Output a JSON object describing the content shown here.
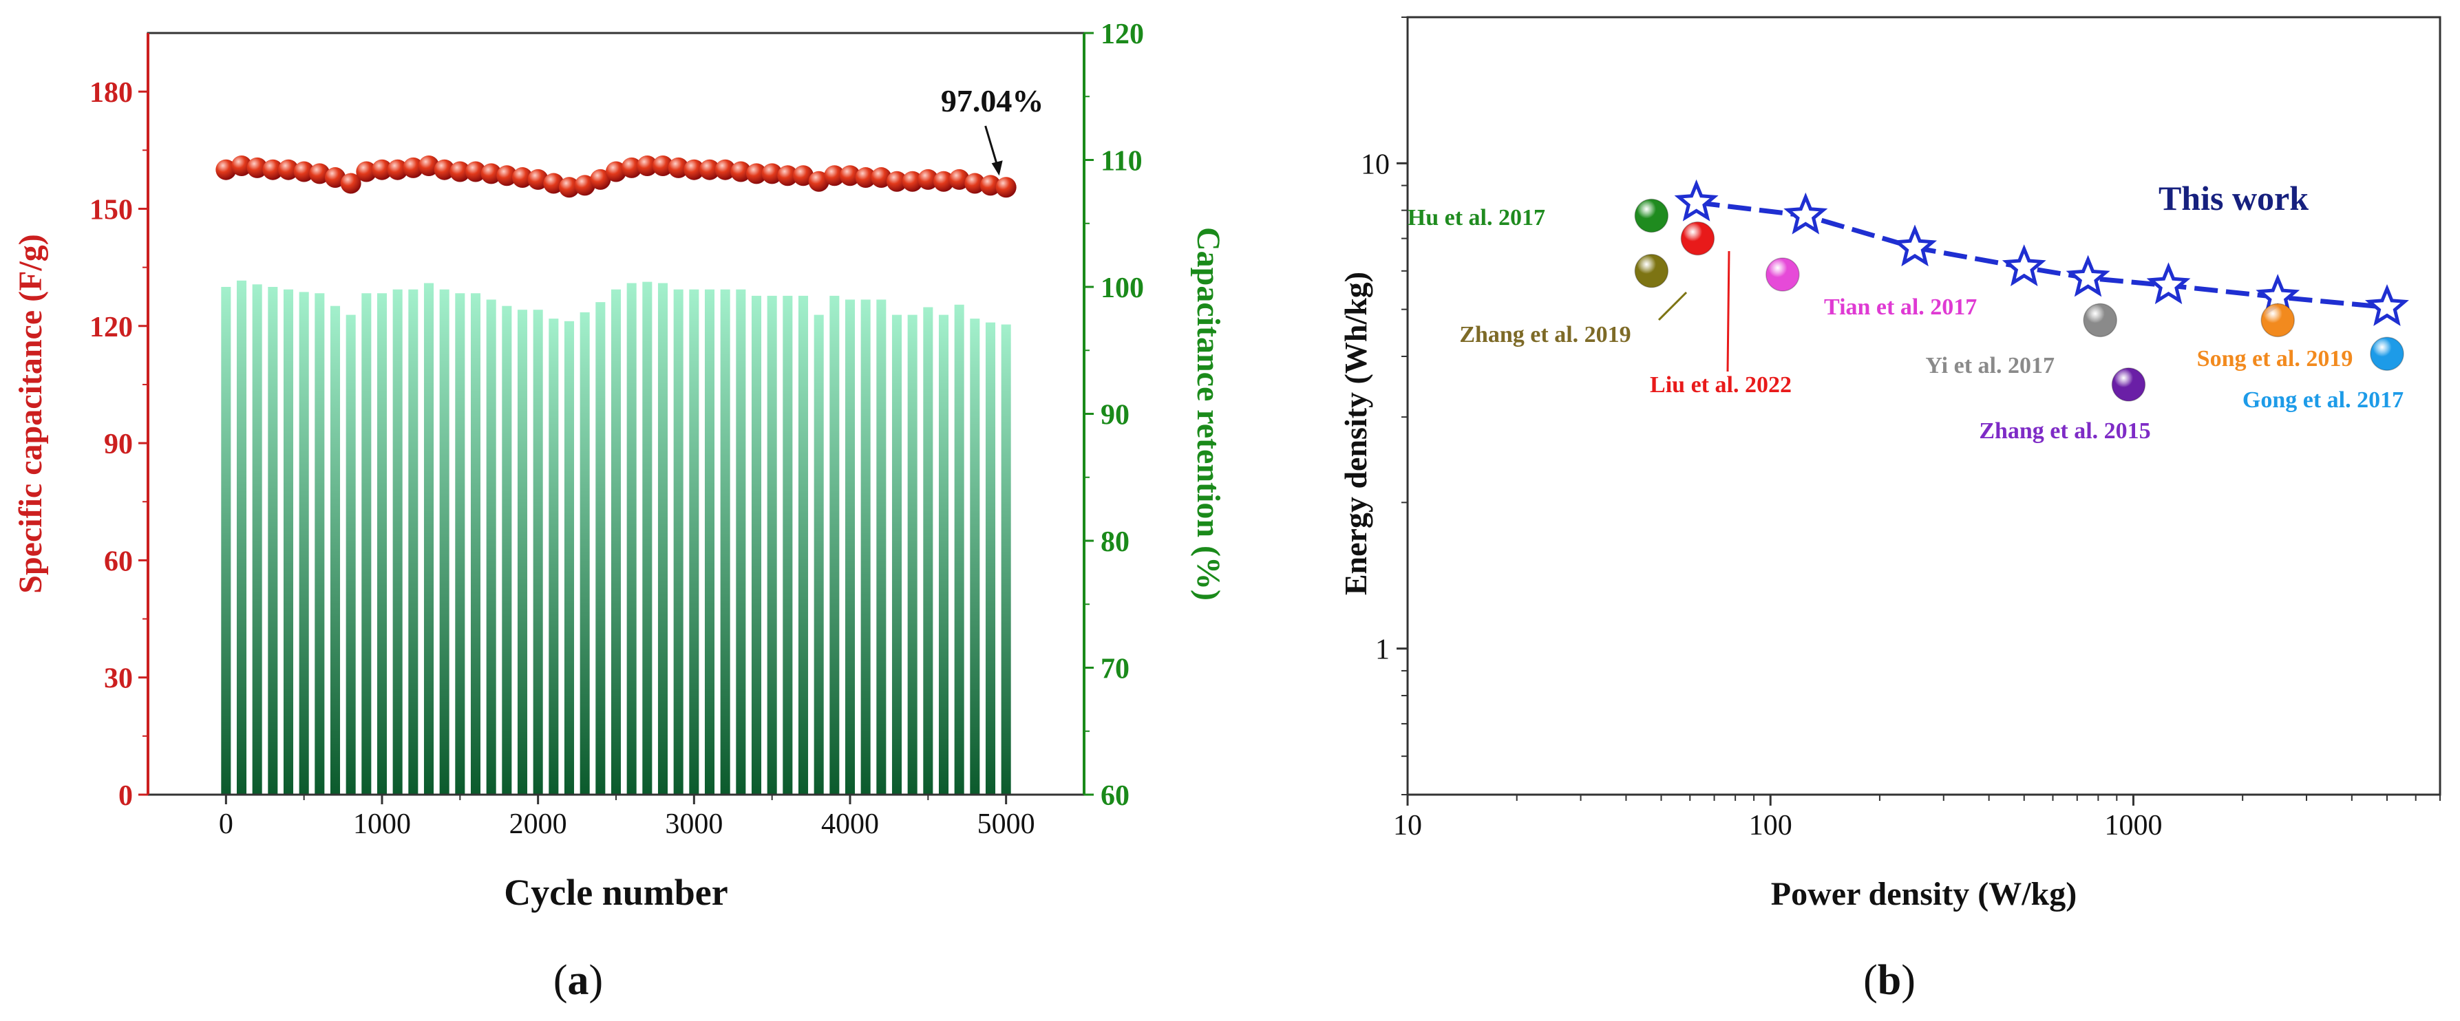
{
  "chart_data": [
    {
      "id": "a",
      "type": "bar+scatter",
      "title": "",
      "panel_label": {
        "prefix": "(",
        "letter": "a",
        "suffix": ")"
      },
      "xlabel": "Cycle number",
      "ylabel_left": "Specific capacitance (F/g)",
      "ylabel_right": "Capacitance retention (%)",
      "xlim": [
        -500,
        5500
      ],
      "ylim_left": [
        0,
        195
      ],
      "ylim_right": [
        60,
        120
      ],
      "xticks": [
        0,
        1000,
        2000,
        3000,
        4000,
        5000
      ],
      "yticks_left": [
        0,
        30,
        60,
        90,
        120,
        150,
        180
      ],
      "yticks_right": [
        60,
        70,
        80,
        90,
        100,
        110,
        120
      ],
      "colors": {
        "capacitance": "#cc1f1f",
        "retention": "#1a8a1a",
        "bar_top": "#a3f0cc",
        "bar_bottom": "#0b5a2c"
      },
      "series": [
        {
          "name": "Specific capacitance",
          "axis": "left",
          "kind": "scatter",
          "x": [
            0,
            100,
            200,
            300,
            400,
            500,
            600,
            700,
            800,
            900,
            1000,
            1100,
            1200,
            1300,
            1400,
            1500,
            1600,
            1700,
            1800,
            1900,
            2000,
            2100,
            2200,
            2300,
            2400,
            2500,
            2600,
            2700,
            2800,
            2900,
            3000,
            3100,
            3200,
            3300,
            3400,
            3500,
            3600,
            3700,
            3800,
            3900,
            4000,
            4100,
            4200,
            4300,
            4400,
            4500,
            4600,
            4700,
            4800,
            4900,
            5000
          ],
          "values": [
            160,
            161,
            160.5,
            160,
            160,
            159.5,
            159,
            158,
            156.5,
            159.5,
            160,
            160,
            160.5,
            161,
            160,
            159.5,
            159.5,
            159,
            158.5,
            158,
            157.5,
            156.5,
            155.5,
            156,
            157.5,
            159.5,
            160.5,
            161,
            161,
            160.5,
            160,
            160,
            160,
            159.5,
            159,
            159,
            158.5,
            158.5,
            157,
            158.5,
            158.5,
            158,
            158,
            157,
            157,
            157.5,
            157,
            157.5,
            156.5,
            156,
            155.5
          ]
        },
        {
          "name": "Capacitance retention",
          "axis": "right",
          "kind": "bar",
          "x": [
            0,
            100,
            200,
            300,
            400,
            500,
            600,
            700,
            800,
            900,
            1000,
            1100,
            1200,
            1300,
            1400,
            1500,
            1600,
            1700,
            1800,
            1900,
            2000,
            2100,
            2200,
            2300,
            2400,
            2500,
            2600,
            2700,
            2800,
            2900,
            3000,
            3100,
            3200,
            3300,
            3400,
            3500,
            3600,
            3700,
            3800,
            3900,
            4000,
            4100,
            4200,
            4300,
            4400,
            4500,
            4600,
            4700,
            4800,
            4900,
            5000
          ],
          "values": [
            100,
            100.5,
            100.2,
            100,
            99.8,
            99.6,
            99.5,
            98.5,
            97.8,
            99.5,
            99.5,
            99.8,
            99.8,
            100.3,
            99.8,
            99.5,
            99.5,
            99,
            98.5,
            98.2,
            98.2,
            97.5,
            97.3,
            98,
            98.8,
            99.8,
            100.3,
            100.4,
            100.3,
            99.8,
            99.8,
            99.8,
            99.8,
            99.8,
            99.3,
            99.3,
            99.3,
            99.3,
            97.8,
            99.3,
            99,
            99,
            99,
            97.8,
            97.8,
            98.4,
            97.8,
            98.6,
            97.5,
            97.2,
            97.04
          ]
        }
      ],
      "annotations": [
        {
          "text": "97.04%",
          "x": 5000,
          "y": 155.5
        }
      ]
    },
    {
      "id": "b",
      "type": "scatter",
      "title": "",
      "panel_label": {
        "prefix": "(",
        "letter": "b",
        "suffix": ")"
      },
      "xlabel": "Power density (W/kg)",
      "ylabel": "Energy density (Wh/kg)",
      "xscale": "log",
      "yscale": "log",
      "xlim": [
        10,
        7000
      ],
      "ylim": [
        0.5,
        20
      ],
      "xticks": [
        10,
        100,
        1000
      ],
      "xtick_labels": [
        "10",
        "100",
        "1000"
      ],
      "yticks": [
        1,
        10
      ],
      "ytick_labels": [
        "1",
        "10"
      ],
      "series": [
        {
          "name": "This work",
          "kind": "line+star",
          "color": "#1f2fd1",
          "x": [
            62.5,
            125,
            250,
            500,
            750,
            1250,
            2500,
            5000
          ],
          "values": [
            8.3,
            7.8,
            6.7,
            6.1,
            5.8,
            5.6,
            5.3,
            5.05
          ]
        }
      ],
      "comparisons": [
        {
          "label": "Hu et al. 2017",
          "x": 47,
          "value": 7.8,
          "color": "#1f8b1f",
          "text_color": "#1f8b1f"
        },
        {
          "label": "Liu et al. 2022",
          "x": 63,
          "value": 7.0,
          "color": "#e81a1a",
          "text_color": "#e81a1a"
        },
        {
          "label": "Zhang et al. 2019",
          "x": 47,
          "value": 6.0,
          "color": "#7d7413",
          "text_color": "#7d6a27"
        },
        {
          "label": "Tian et al. 2017",
          "x": 108,
          "value": 5.9,
          "color": "#e64ad8",
          "text_color": "#df3ad3"
        },
        {
          "label": "Yi et al. 2017",
          "x": 810,
          "value": 4.75,
          "color": "#8a8a8a",
          "text_color": "#8a8a8a"
        },
        {
          "label": "Song et al. 2019",
          "x": 2500,
          "value": 4.75,
          "color": "#f28a1e",
          "text_color": "#f28a1e"
        },
        {
          "label": "Zhang et al. 2015",
          "x": 970,
          "value": 3.5,
          "color": "#6a1fa6",
          "text_color": "#7e2bc6"
        },
        {
          "label": "Gong et al. 2017",
          "x": 5000,
          "value": 4.05,
          "color": "#1d9be8",
          "text_color": "#1d9be8"
        }
      ],
      "annotations": [
        {
          "text": "This work",
          "color": "#16207e"
        }
      ]
    }
  ]
}
